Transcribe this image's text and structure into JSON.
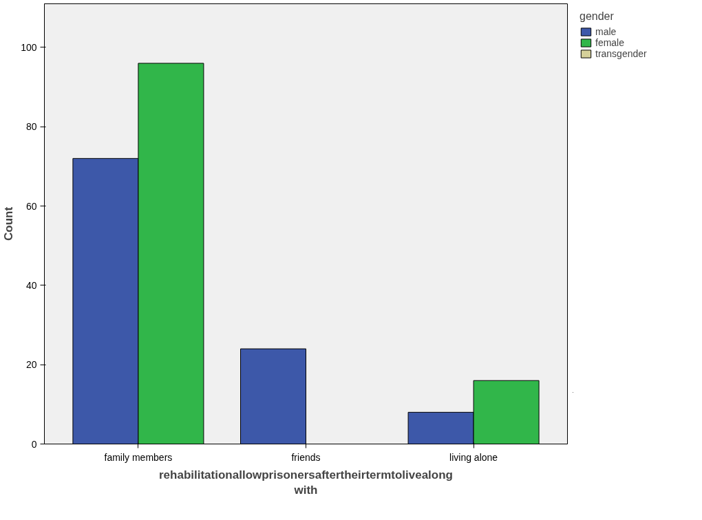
{
  "chart_data": {
    "type": "bar",
    "xlabel": "rehabilitationallowprisonersaftertheirtermtolivealong with",
    "ylabel": "Count",
    "legend_title": "gender",
    "categories": [
      "family members",
      "friends",
      "living alone"
    ],
    "series": [
      {
        "name": "male",
        "color": "#3d58a9",
        "values": [
          72,
          24,
          8
        ]
      },
      {
        "name": "female",
        "color": "#31b64a",
        "values": [
          96,
          null,
          16
        ]
      },
      {
        "name": "transgender",
        "color": "#d5d09a",
        "values": [
          null,
          null,
          null
        ]
      }
    ],
    "ylim": [
      0,
      111
    ],
    "yticks": [
      0,
      20,
      40,
      60,
      80,
      100
    ],
    "grid": false,
    "legend": "right"
  }
}
